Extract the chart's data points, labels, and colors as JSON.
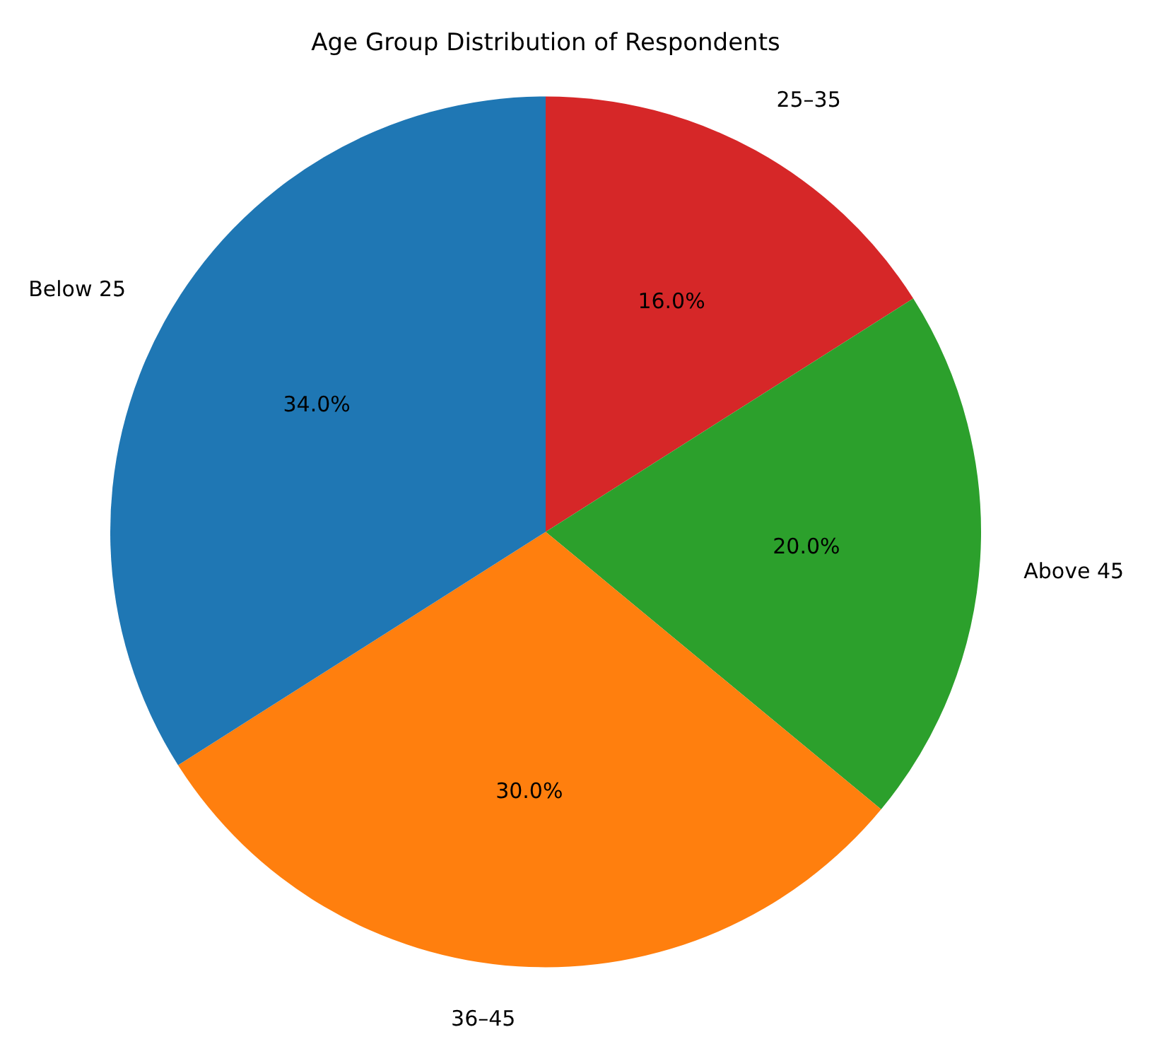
{
  "chart_data": {
    "type": "pie",
    "title": "Age Group Distribution of Respondents",
    "categories": [
      "25–35",
      "Above 45",
      "36–45",
      "Below 25"
    ],
    "values": [
      16,
      20,
      30,
      34
    ],
    "value_labels": [
      "16.0%",
      "20.0%",
      "30.0%",
      "34.0%"
    ],
    "colors": [
      "#d62728",
      "#2ca02c",
      "#ff7f0e",
      "#1f77b4"
    ],
    "legend": false
  }
}
